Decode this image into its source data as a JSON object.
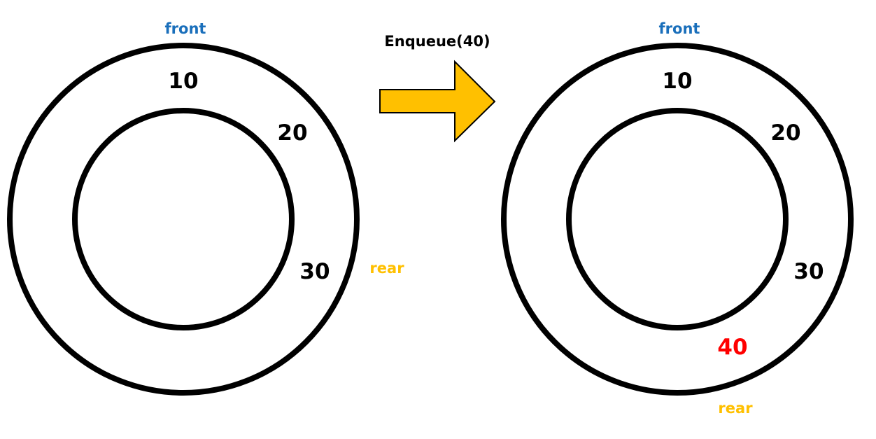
{
  "colors": {
    "front": "#1a6fbb",
    "rear": "#ffc000",
    "new_value": "#ff0000",
    "arrow": "#ffc000"
  },
  "before": {
    "front_label": "front",
    "rear_label": "rear",
    "values": [
      "10",
      "20",
      "30"
    ]
  },
  "operation": {
    "label": "Enqueue(40)"
  },
  "after": {
    "front_label": "front",
    "rear_label": "rear",
    "values": [
      "10",
      "20",
      "30"
    ],
    "new_value": "40"
  }
}
